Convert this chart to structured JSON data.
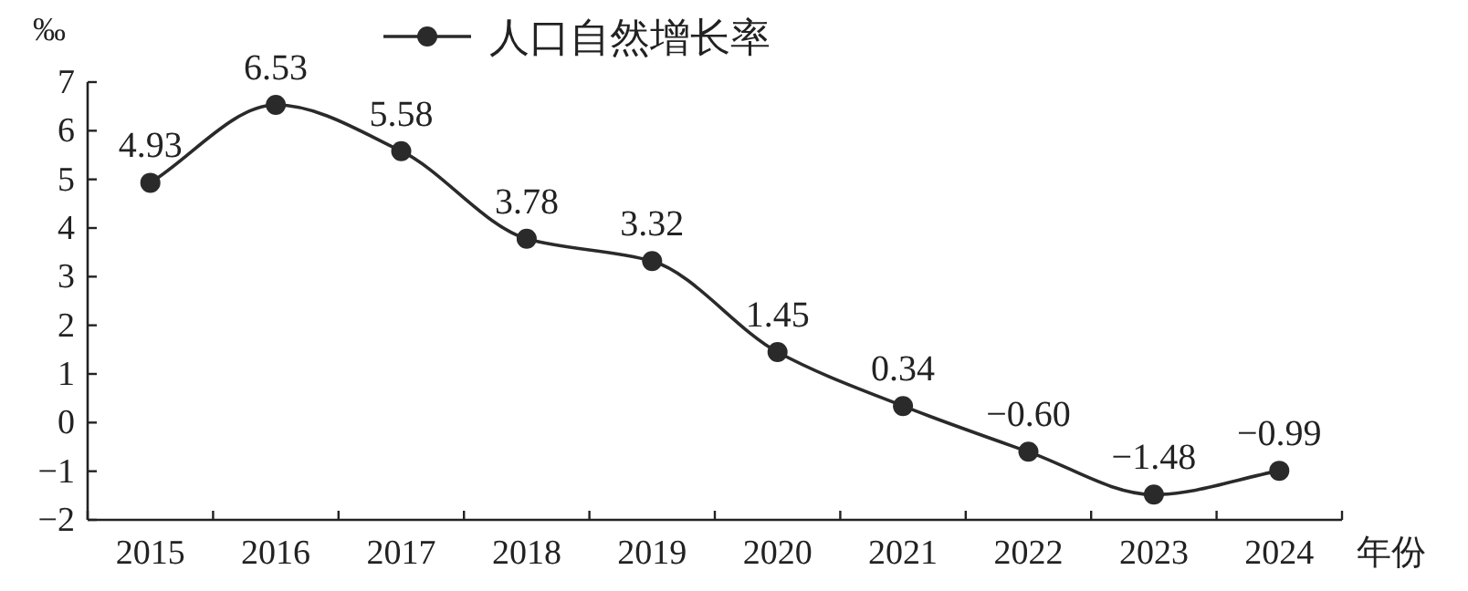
{
  "chart_data": {
    "type": "line",
    "ylabel": "‰",
    "xlabel": "年份",
    "categories": [
      "2015",
      "2016",
      "2017",
      "2018",
      "2019",
      "2020",
      "2021",
      "2022",
      "2023",
      "2024"
    ],
    "series": [
      {
        "name": "人口自然增长率",
        "color": "#2a2a2a",
        "values": [
          4.93,
          6.53,
          5.58,
          3.78,
          3.32,
          1.45,
          0.34,
          -0.6,
          -1.48,
          -0.99
        ],
        "value_labels": [
          "4.93",
          "6.53",
          "5.58",
          "3.78",
          "3.32",
          "1.45",
          "0.34",
          "−0.60",
          "−1.48",
          "−0.99"
        ]
      }
    ],
    "ylim": [
      -2,
      7
    ],
    "yticks": [
      {
        "value": -2,
        "label": "−2"
      },
      {
        "value": -1,
        "label": "−1"
      },
      0,
      1,
      2,
      3,
      4,
      5,
      6,
      7
    ],
    "marker": "circle",
    "line_style": "solid",
    "legend": "top"
  }
}
